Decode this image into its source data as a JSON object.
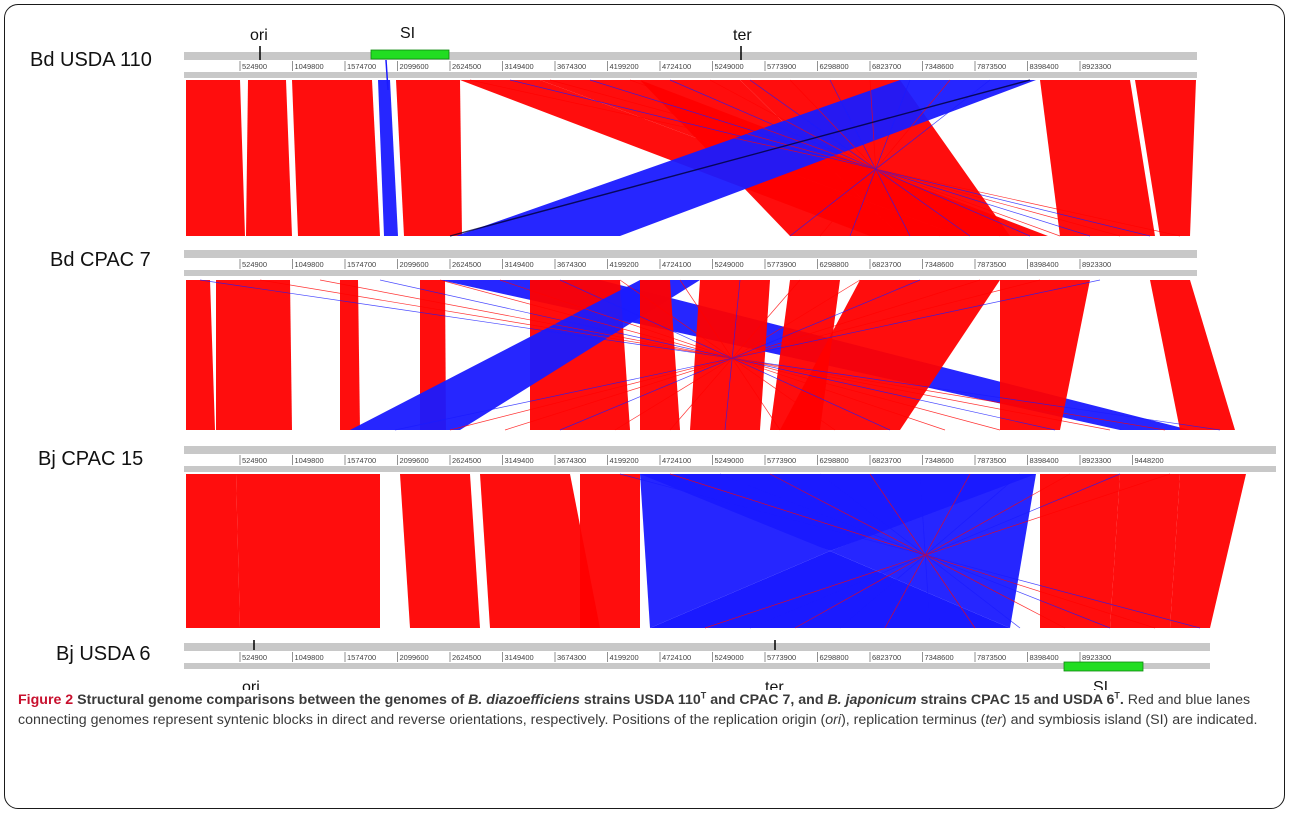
{
  "figure": {
    "genomes": [
      {
        "name": "Bd USDA 110",
        "ticks": [
          "524900",
          "1049800",
          "1574700",
          "2099600",
          "2624500",
          "3149400",
          "3674300",
          "4199200",
          "4724100",
          "5249000",
          "5773900",
          "6298800",
          "6823700",
          "7348600",
          "7873500",
          "8398400",
          "8923300"
        ]
      },
      {
        "name": "Bd CPAC 7",
        "ticks": [
          "524900",
          "1049800",
          "1574700",
          "2099600",
          "2624500",
          "3149400",
          "3674300",
          "4199200",
          "4724100",
          "5249000",
          "5773900",
          "6298800",
          "6823700",
          "7348600",
          "7873500",
          "8398400",
          "8923300"
        ]
      },
      {
        "name": "Bj CPAC 15",
        "ticks": [
          "524900",
          "1049800",
          "1574700",
          "2099600",
          "2624500",
          "3149400",
          "3674300",
          "4199200",
          "4724100",
          "5249000",
          "5773900",
          "6298800",
          "6823700",
          "7348600",
          "7873500",
          "8398400",
          "8923300",
          "9448200"
        ]
      },
      {
        "name": "Bj USDA 6",
        "ticks": [
          "524900",
          "1049800",
          "1574700",
          "2099600",
          "2624500",
          "3149400",
          "3674300",
          "4199200",
          "4724100",
          "5249000",
          "5773900",
          "6298800",
          "6823700",
          "7348600",
          "7873500",
          "8398400",
          "8923300"
        ]
      }
    ],
    "markers_top": {
      "ori": "ori",
      "si": "SI",
      "ter": "ter"
    },
    "markers_bottom": {
      "ori": "ori",
      "ter": "ter",
      "si": "SI"
    },
    "colors": {
      "direct": "#ff0000",
      "reverse": "#1a1aff",
      "si": "#22dd22",
      "track": "#c8c8c8",
      "accent_caption": "#c8102e"
    }
  },
  "caption": {
    "label": "Figure 2",
    "title_1": "Structural genome comparisons between the genomes of ",
    "species_1": "B. diazoefficiens",
    "title_2": " strains USDA 110",
    "sup_1": "T",
    "title_3": " and CPAC 7, and ",
    "species_2": "B. japonicum",
    "title_4": " strains CPAC 15 and USDA 6",
    "sup_2": "T",
    "title_5": ".",
    "body_1": " Red and blue lanes connecting genomes represent syntenic blocks in direct and reverse orientations, respectively. Positions of the replication origin (",
    "ori": "ori",
    "body_2": "), replication terminus (",
    "ter": "ter",
    "body_3": ") and symbiosis island (SI) are indicated."
  }
}
